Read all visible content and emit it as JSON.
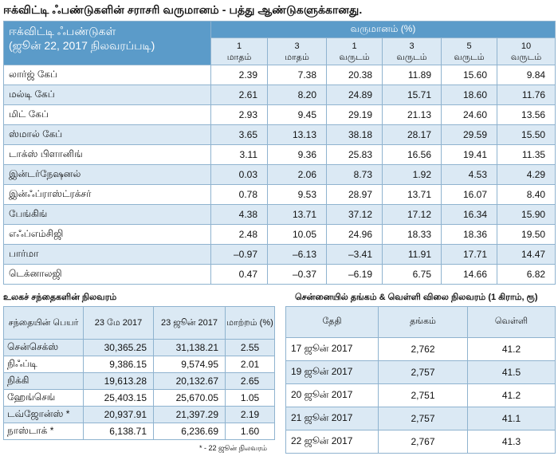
{
  "title": "ஈக்விட்டி ஃபண்டுகளின் சராசரி வருமானம் - பத்து ஆண்டுகளுக்கானது.",
  "main": {
    "fund_header_line1": "ஈக்விட்டி ஃபண்டுகள்",
    "fund_header_line2": "(ஜூன் 22, 2017   நிலவரப்படி)",
    "returns_header": "வருமானம் (%)",
    "periods": [
      {
        "n": "1",
        "unit": "மாதம்"
      },
      {
        "n": "3",
        "unit": "மாதம்"
      },
      {
        "n": "1",
        "unit": "வருடம்"
      },
      {
        "n": "3",
        "unit": "வருடம்"
      },
      {
        "n": "5",
        "unit": "வருடம்"
      },
      {
        "n": "10",
        "unit": "வருடம்"
      }
    ],
    "rows": [
      {
        "name": "லார்ஜ் கேப்",
        "values": [
          "2.39",
          "7.38",
          "20.38",
          "11.89",
          "15.60",
          "9.84"
        ]
      },
      {
        "name": "மல்டி கேப்",
        "values": [
          "2.61",
          "8.20",
          "24.89",
          "15.71",
          "18.60",
          "11.76"
        ]
      },
      {
        "name": "மிட் கேப்",
        "values": [
          "2.93",
          "9.45",
          "29.19",
          "21.13",
          "24.60",
          "13.56"
        ]
      },
      {
        "name": "ஸ்மால் கேப்",
        "values": [
          "3.65",
          "13.13",
          "38.18",
          "28.17",
          "29.59",
          "15.50"
        ]
      },
      {
        "name": "டாக்ஸ் பிளானிங்",
        "values": [
          "3.11",
          "9.36",
          "25.83",
          "16.56",
          "19.41",
          "11.35"
        ]
      },
      {
        "name": "இன்டர்நேஷனல்",
        "values": [
          "0.03",
          "2.06",
          "8.73",
          "1.92",
          "4.53",
          "4.29"
        ]
      },
      {
        "name": "இன்ஃப்ராஸ்ட்ரக்சர்",
        "values": [
          "0.78",
          "9.53",
          "28.97",
          "13.71",
          "16.07",
          "8.40"
        ]
      },
      {
        "name": "பேங்கிங்",
        "values": [
          "4.38",
          "13.71",
          "37.12",
          "17.12",
          "16.34",
          "15.90"
        ]
      },
      {
        "name": "எஃப்எம்சிஜி",
        "values": [
          "2.48",
          "10.05",
          "24.96",
          "18.33",
          "18.36",
          "19.50"
        ]
      },
      {
        "name": "பார்மா",
        "values": [
          "–0.97",
          "–6.13",
          "–3.41",
          "11.91",
          "17.71",
          "14.47"
        ]
      },
      {
        "name": "டெக்னாலஜி",
        "values": [
          "0.47",
          "–0.37",
          "–6.19",
          "6.75",
          "14.66",
          "6.82"
        ]
      }
    ]
  },
  "markets": {
    "label": "உலகச் சந்தைகளின் நிலவரம்",
    "headers": [
      "சந்தையின் பெயர்",
      "23 மே 2017",
      "23 ஜூன் 2017",
      "மாற்றம் (%)"
    ],
    "rows": [
      {
        "name": "சென்செக்ஸ்",
        "may": "30,365.25",
        "june": "31,138.21",
        "change": "2.55"
      },
      {
        "name": "நிஃப்டி",
        "may": "9,386.15",
        "june": "9,574.95",
        "change": "2.01"
      },
      {
        "name": "நிக்கி",
        "may": "19,613.28",
        "june": "20,132.67",
        "change": "2.65"
      },
      {
        "name": "ஹேங்செங்",
        "may": "25,403.15",
        "june": "25,670.05",
        "change": "1.05"
      },
      {
        "name": "டவ்ஜோன்ஸ் *",
        "may": "20,937.91",
        "june": "21,397.29",
        "change": "2.19"
      },
      {
        "name": "நாஸ்டாக் *",
        "may": "6,138.71",
        "june": "6,236.69",
        "change": "1.60"
      }
    ],
    "footnote": "* - 22 ஜூன் நிலவரம்"
  },
  "gold": {
    "label": "சென்னையில் தங்கம் & வெள்ளி விலை நிலவரம் (1 கிராம், ரூ)",
    "headers": [
      "தேதி",
      "தங்கம்",
      "வெள்ளி"
    ],
    "rows": [
      {
        "date": "17 ஜூன் 2017",
        "gold": "2,762",
        "silver": "41.2"
      },
      {
        "date": "19 ஜூன் 2017",
        "gold": "2,757",
        "silver": "41.5"
      },
      {
        "date": "20 ஜூன் 2017",
        "gold": "2,751",
        "silver": "41.2"
      },
      {
        "date": "21 ஜூன் 2017",
        "gold": "2,757",
        "silver": "41.1"
      },
      {
        "date": "22 ஜூன் 2017",
        "gold": "2,767",
        "silver": "41.3"
      }
    ]
  },
  "colors": {
    "header_blue": "#5b9bc9",
    "row_shade": "#dbe9f4"
  }
}
